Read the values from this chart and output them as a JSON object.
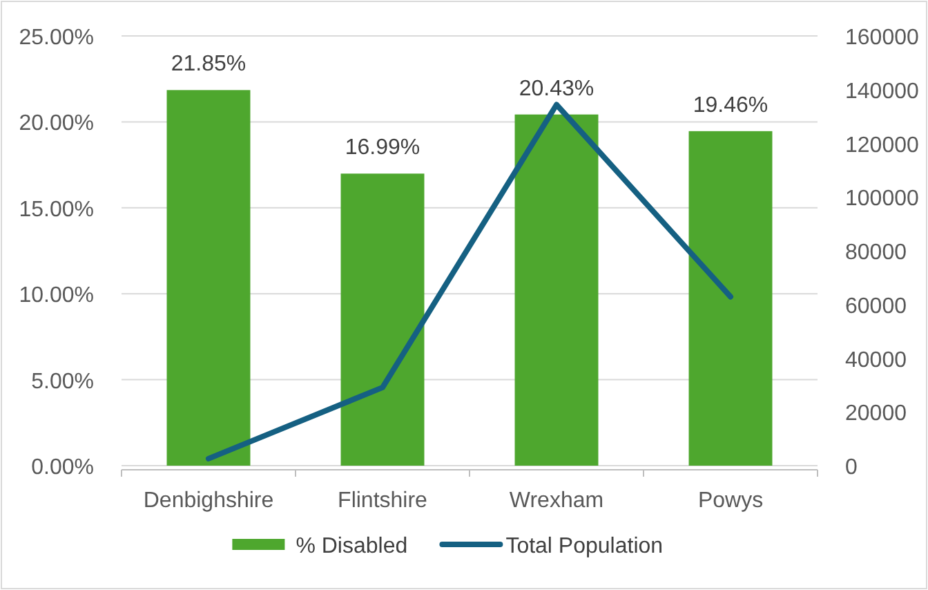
{
  "chart_data": {
    "type": "bar",
    "categories": [
      "Denbighshire",
      "Flintshire",
      "Wrexham",
      "Powys"
    ],
    "series": [
      {
        "name": "% Disabled",
        "color": "#4ea72e",
        "values": [
          21.85,
          16.99,
          20.43,
          19.46
        ],
        "value_labels": [
          "21.85%",
          "16.99%",
          "20.43%",
          "19.46%"
        ]
      },
      {
        "name": "Total Population",
        "type": "line",
        "axis": "y2",
        "color": "#156082",
        "values": [
          2600,
          29100,
          134400,
          62900
        ]
      }
    ],
    "ylim": [
      0,
      25
    ],
    "yticks": [
      {
        "value": 0,
        "label": "0.00%"
      },
      {
        "value": 5,
        "label": "5.00%"
      },
      {
        "value": 10,
        "label": "10.00%"
      },
      {
        "value": 15,
        "label": "15.00%"
      },
      {
        "value": 20,
        "label": "20.00%"
      },
      {
        "value": 25,
        "label": "25.00%"
      }
    ],
    "y2lim": [
      0,
      160000
    ],
    "y2ticks": [
      0,
      20000,
      40000,
      60000,
      80000,
      100000,
      120000,
      140000,
      160000
    ],
    "grid": "y",
    "legend": "bottom",
    "marker": "none",
    "line_style": "solid"
  }
}
